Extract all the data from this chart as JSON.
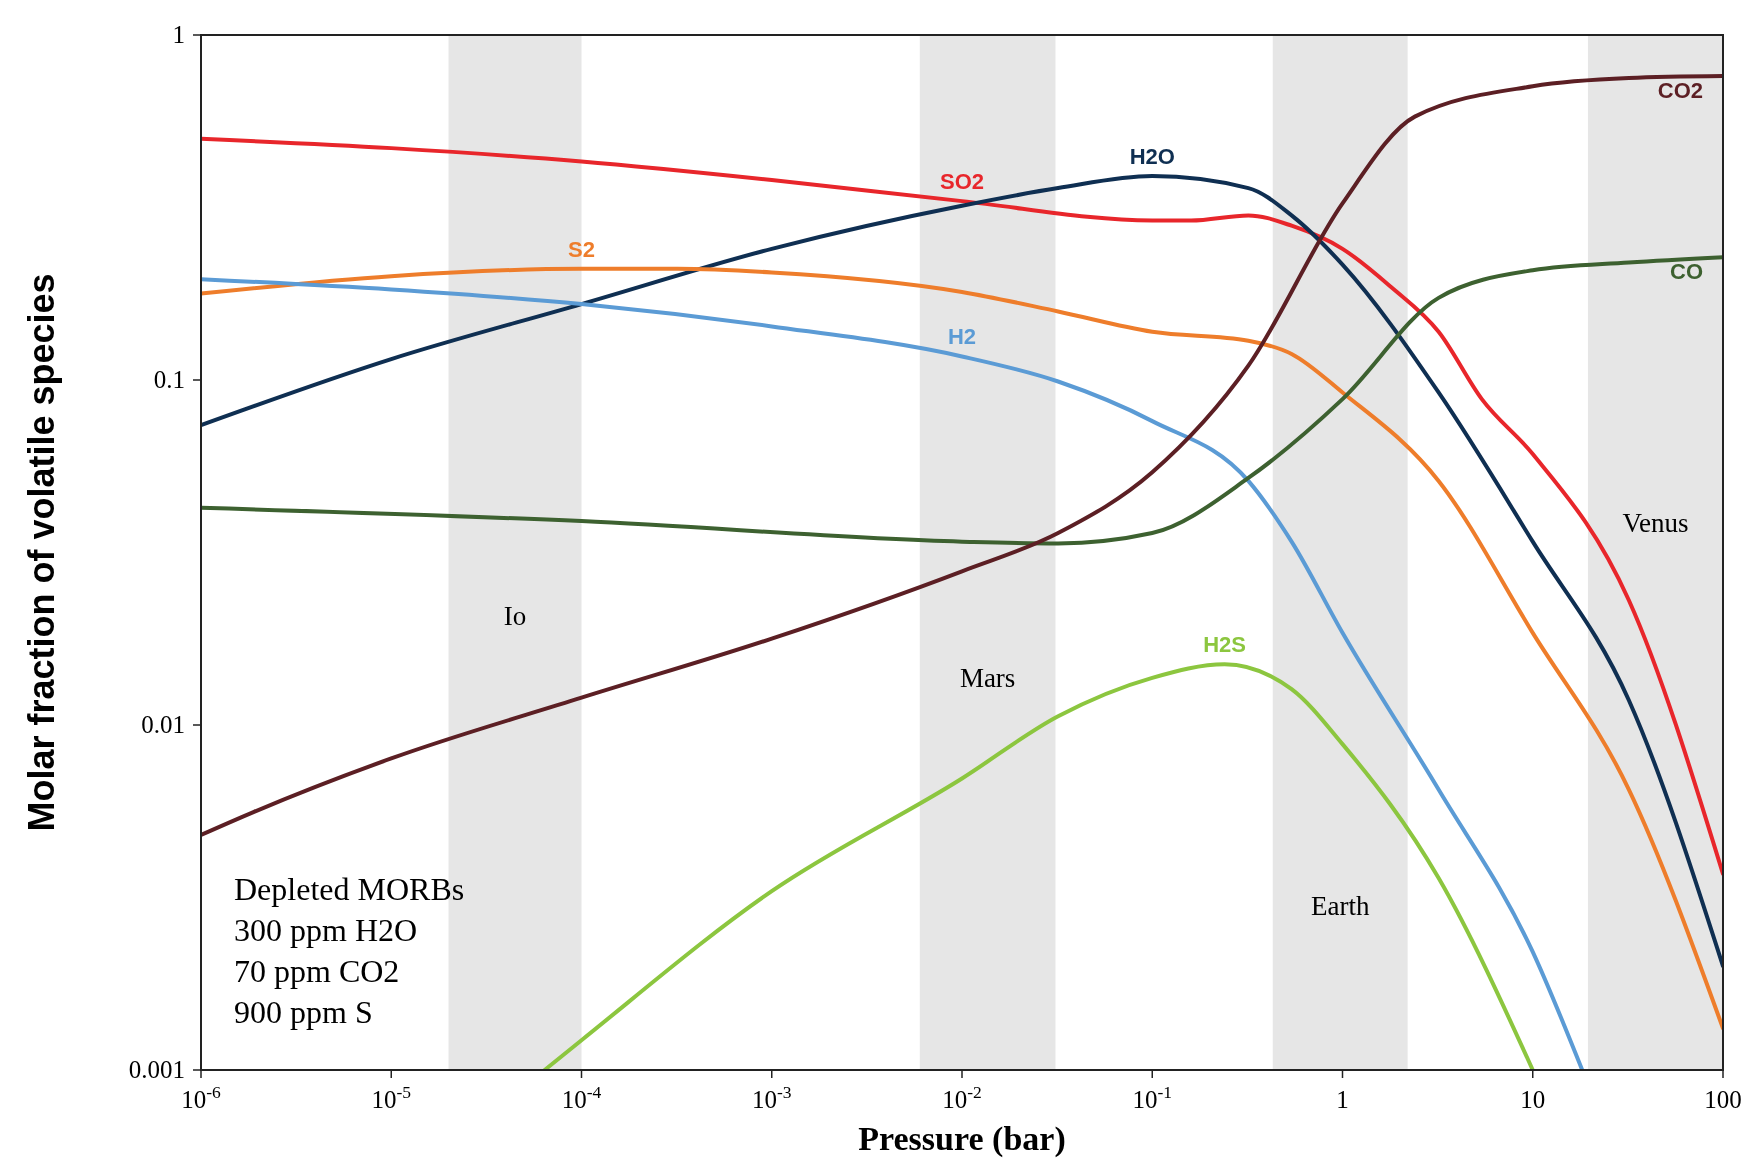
{
  "chart_data": {
    "type": "line",
    "xlabel": "Pressure (bar)",
    "ylabel": "Molar fraction of volatile species",
    "log": "xy",
    "xlim": [
      1e-06,
      100
    ],
    "ylim": [
      0.001,
      1
    ],
    "xticks": [
      {
        "value": 1e-06,
        "label": "10$^{-6}$"
      },
      {
        "value": 1e-05,
        "label": "10$^{-5}$"
      },
      {
        "value": 0.0001,
        "label": "10$^{-4}$"
      },
      {
        "value": 0.001,
        "label": "10$^{-3}$"
      },
      {
        "value": 0.01,
        "label": "10$^{-2}$"
      },
      {
        "value": 0.1,
        "label": "10$^{-1}$"
      },
      1,
      10,
      100
    ],
    "yticks": [
      0.001,
      0.01,
      0.1,
      1
    ],
    "grid": false,
    "marker": "none",
    "line_style": "solid",
    "bands": [
      {
        "axis": "x",
        "from": 2e-05,
        "to": 0.0001,
        "label": "Io",
        "color": "#e6e6e6"
      },
      {
        "axis": "x",
        "from": 0.006,
        "to": 0.031,
        "label": "Mars",
        "color": "#e6e6e6"
      },
      {
        "axis": "x",
        "from": 0.43,
        "to": 2.2,
        "label": "Earth",
        "color": "#e6e6e6"
      },
      {
        "axis": "x",
        "from": 19.5,
        "to": 100,
        "label": "Venus",
        "color": "#e6e6e6"
      }
    ],
    "series": [
      {
        "name": "SO2",
        "color": "#e8262b",
        "x": [
          1e-06,
          1e-05,
          0.0001,
          0.001,
          0.01,
          0.1,
          0.16,
          0.32,
          0.54,
          1,
          1.8,
          3.2,
          5.4,
          10,
          32,
          100
        ],
        "values": [
          0.5,
          0.47,
          0.43,
          0.38,
          0.33,
          0.29,
          0.29,
          0.3,
          0.28,
          0.24,
          0.186,
          0.138,
          0.088,
          0.061,
          0.023,
          0.0037
        ]
      },
      {
        "name": "H2O",
        "color": "#0f2f52",
        "x": [
          1e-06,
          1e-05,
          0.0001,
          0.001,
          0.01,
          0.032,
          0.1,
          0.32,
          0.54,
          1,
          3.2,
          10,
          32,
          100
        ],
        "values": [
          0.074,
          0.115,
          0.166,
          0.24,
          0.32,
          0.36,
          0.39,
          0.36,
          0.3,
          0.216,
          0.092,
          0.034,
          0.0118,
          0.002
        ]
      },
      {
        "name": "S2",
        "color": "#ee7d2b",
        "x": [
          1e-06,
          1e-05,
          0.0001,
          0.00032,
          0.001,
          0.01,
          0.032,
          0.1,
          0.32,
          0.54,
          1,
          3.2,
          10,
          32,
          100
        ],
        "values": [
          0.178,
          0.2,
          0.21,
          0.21,
          0.205,
          0.18,
          0.158,
          0.138,
          0.13,
          0.119,
          0.092,
          0.051,
          0.0185,
          0.0065,
          0.00132
        ]
      },
      {
        "name": "H2",
        "color": "#5b9bd5",
        "x": [
          1e-06,
          1e-05,
          0.0001,
          0.001,
          0.01,
          0.032,
          0.1,
          0.32,
          0.54,
          1,
          3.2,
          10,
          18.2
        ],
        "values": [
          0.196,
          0.183,
          0.166,
          0.143,
          0.117,
          0.099,
          0.076,
          0.051,
          0.034,
          0.0185,
          0.0065,
          0.0022,
          0.001
        ]
      },
      {
        "name": "CO",
        "color": "#3d6130",
        "x": [
          1e-06,
          0.0001,
          0.01,
          0.032,
          0.1,
          0.32,
          1,
          3.2,
          10,
          32,
          100
        ],
        "values": [
          0.0426,
          0.039,
          0.034,
          0.0336,
          0.036,
          0.052,
          0.088,
          0.173,
          0.208,
          0.219,
          0.227
        ]
      },
      {
        "name": "CO2",
        "color": "#5c1f24",
        "x": [
          1e-06,
          1.9e-06,
          1e-05,
          0.0001,
          0.001,
          0.01,
          0.032,
          0.1,
          0.32,
          1,
          2.4,
          10,
          32,
          100
        ],
        "values": [
          0.0048,
          0.0056,
          0.008,
          0.012,
          0.0178,
          0.0279,
          0.036,
          0.054,
          0.11,
          0.325,
          0.58,
          0.71,
          0.75,
          0.76
        ]
      },
      {
        "name": "H2S",
        "color": "#8cc63f",
        "x": [
          6.4e-05,
          0.0001,
          0.001,
          0.01,
          0.032,
          0.1,
          0.24,
          0.54,
          1,
          3.2,
          10
        ],
        "values": [
          0.001,
          0.00122,
          0.0033,
          0.007,
          0.0106,
          0.0137,
          0.015,
          0.0127,
          0.0088,
          0.0036,
          0.001
        ]
      }
    ],
    "annotations": [
      "Depleted MORBs",
      "300 ppm H2O",
      "70 ppm CO2",
      "900 ppm S"
    ]
  }
}
